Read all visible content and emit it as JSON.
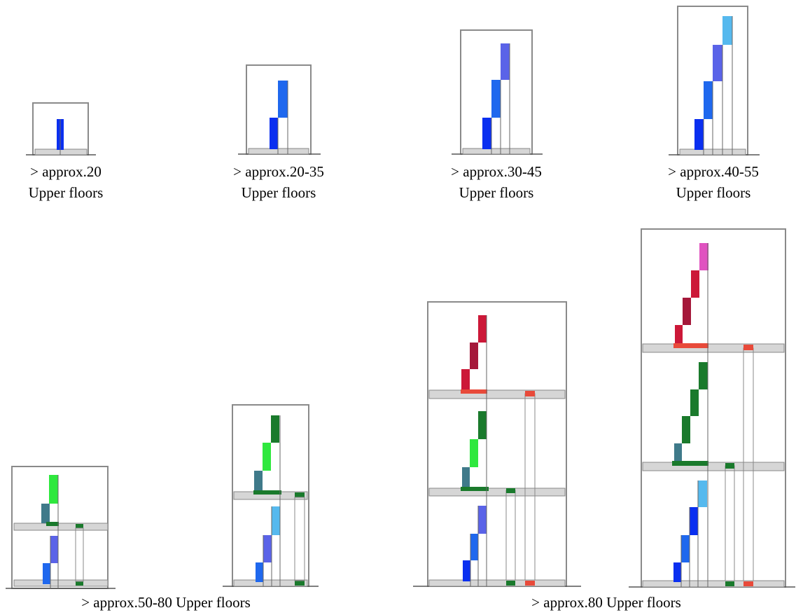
{
  "labels": {
    "d1_line1": "> approx.20",
    "d1_line2": "Upper floors",
    "d2_line1": "> approx.20-35",
    "d2_line2": "Upper floors",
    "d3_line1": "> approx.30-45",
    "d3_line2": "Upper floors",
    "d4_line1": "> approx.40-55",
    "d4_line2": "Upper floors",
    "group1": "> approx.50-80 Upper floors",
    "group2": "> approx.80 Upper floors"
  },
  "colors": {
    "frame": "#888888",
    "slab": "#d6d6d6",
    "blue": "#0a2ff0",
    "blue_mid": "#1f68ee",
    "blue_violet": "#5a63e8",
    "sky": "#56b9ee",
    "green": "#2fe83e",
    "green_dark": "#1a7a2c",
    "teal": "#3f7a8a",
    "red": "#cc1838",
    "red_dark": "#a5183a",
    "magenta": "#e052c0",
    "shaft_red": "#e84a3a"
  }
}
